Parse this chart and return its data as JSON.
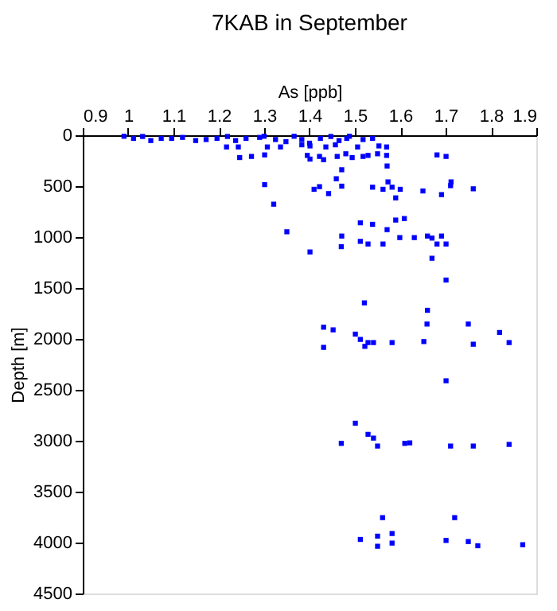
{
  "chart_data": {
    "type": "scatter",
    "title": "7KAB in September",
    "xlabel": "As [ppb]",
    "ylabel": "Depth [m]",
    "xlim": [
      0.9,
      1.9
    ],
    "xticks": [
      0.9,
      1,
      1.1,
      1.2,
      1.3,
      1.4,
      1.5,
      1.6,
      1.7,
      1.8,
      1.9
    ],
    "ylim": [
      4500,
      0
    ],
    "yticks": [
      0,
      500,
      1000,
      1500,
      2000,
      2500,
      3000,
      3500,
      4000,
      4500
    ],
    "grid": false,
    "legend": false,
    "marker": "square",
    "series": [
      {
        "color": "#0000ff",
        "x": [
          0.991,
          1.012,
          1.032,
          1.05,
          1.073,
          1.096,
          1.12,
          1.149,
          1.172,
          1.196,
          1.219,
          1.237,
          1.26,
          1.29,
          1.3,
          1.325,
          1.348,
          1.366,
          1.383,
          1.4,
          1.424,
          1.447,
          1.465,
          1.482,
          1.488,
          1.518,
          1.539,
          1.217,
          1.243,
          1.307,
          1.336,
          1.383,
          1.401,
          1.436,
          1.457,
          1.506,
          1.553,
          1.57,
          1.246,
          1.272,
          1.301,
          1.395,
          1.422,
          1.461,
          1.48,
          1.494,
          1.518,
          1.529,
          1.55,
          1.57,
          1.681,
          1.701,
          1.401,
          1.431,
          1.471,
          1.571,
          1.459,
          1.573,
          1.712,
          1.301,
          1.41,
          1.422,
          1.471,
          1.539,
          1.562,
          1.582,
          1.6,
          1.65,
          1.711,
          1.761,
          1.442,
          1.691,
          1.59,
          1.321,
          1.512,
          1.539,
          1.59,
          1.609,
          1.571,
          1.35,
          1.471,
          1.512,
          1.529,
          1.562,
          1.599,
          1.631,
          1.66,
          1.67,
          1.691,
          1.681,
          1.701,
          1.47,
          1.401,
          1.67,
          1.701,
          1.521,
          1.66,
          1.659,
          1.75,
          1.431,
          1.452,
          1.501,
          1.512,
          1.522,
          1.529,
          1.541,
          1.582,
          1.652,
          1.761,
          1.819,
          1.84,
          1.431,
          1.701,
          1.501,
          1.529,
          1.541,
          1.47,
          1.55,
          1.61,
          1.621,
          1.711,
          1.761,
          1.84,
          1.561,
          1.72,
          1.512,
          1.55,
          1.582,
          1.55,
          1.582,
          1.701,
          1.75,
          1.771,
          1.87
        ],
        "values": [
          10,
          31,
          12,
          52,
          31,
          31,
          21,
          52,
          42,
          31,
          12,
          52,
          31,
          21,
          10,
          42,
          63,
          10,
          42,
          78,
          31,
          12,
          52,
          31,
          10,
          42,
          31,
          115,
          115,
          115,
          115,
          94,
          105,
          115,
          94,
          115,
          105,
          115,
          219,
          208,
          193,
          198,
          208,
          208,
          182,
          219,
          208,
          198,
          182,
          198,
          193,
          208,
          234,
          240,
          339,
          302,
          427,
          458,
          458,
          485,
          531,
          505,
          500,
          510,
          531,
          510,
          531,
          547,
          495,
          526,
          573,
          583,
          615,
          677,
          860,
          875,
          833,
          818,
          927,
          948,
          990,
          1042,
          1068,
          1068,
          1005,
          1005,
          990,
          1010,
          990,
          1068,
          1068,
          1094,
          1146,
          1208,
          1422,
          1646,
          1719,
          1854,
          1854,
          1885,
          1911,
          1953,
          2005,
          2073,
          2036,
          2036,
          2036,
          2026,
          2052,
          1937,
          2036,
          2083,
          2411,
          2828,
          2937,
          2974,
          3026,
          3052,
          3026,
          3021,
          3052,
          3052,
          3036,
          3755,
          3755,
          3969,
          3937,
          3911,
          4036,
          4005,
          3979,
          3990,
          4031,
          4021
        ]
      }
    ]
  }
}
